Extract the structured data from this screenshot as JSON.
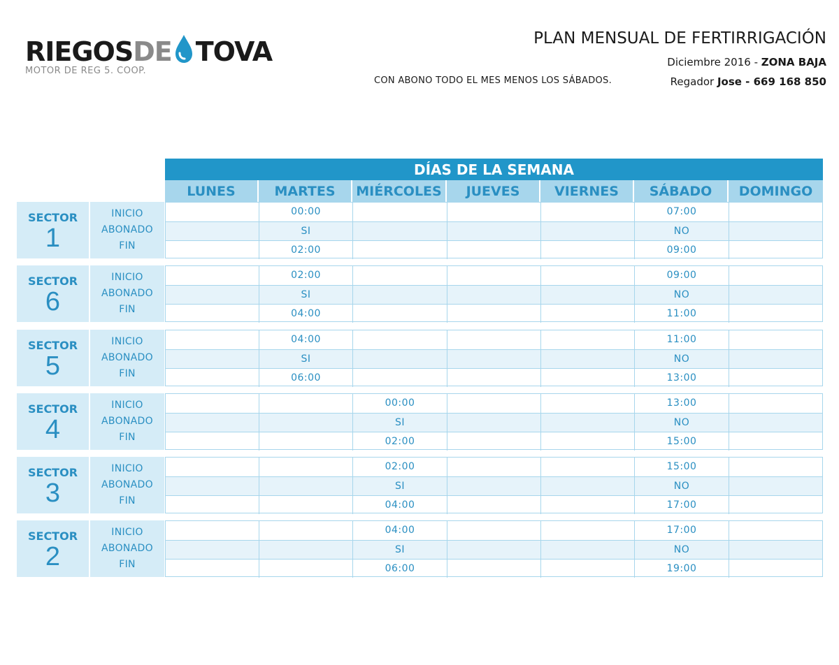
{
  "brand": {
    "word1": "RIEGOS",
    "word2": "DE",
    "word3": "TOVA",
    "subtitle": "MOTOR DE REG 5. COOP.",
    "accent": "#2196c9"
  },
  "header": {
    "title": "PLAN MENSUAL DE FERTIRRIGACIÓN",
    "date_prefix": "Diciembre 2016 - ",
    "zone": "ZONA BAJA",
    "reg_prefix": "Regador ",
    "reg_name": "Jose - 669 168 850",
    "note": "CON ABONO TODO EL MES MENOS LOS SÁBADOS."
  },
  "table": {
    "banner": "DÍAS DE LA SEMANA",
    "days": [
      "LUNES",
      "MARTES",
      "MIÉRCOLES",
      "JUEVES",
      "VIERNES",
      "SÁBADO",
      "DOMINGO"
    ],
    "row_labels": [
      "INICIO",
      "ABONADO",
      "FIN"
    ],
    "sector_word": "SECTOR",
    "sectors": [
      {
        "number": "1",
        "rows": [
          [
            "",
            "00:00",
            "",
            "",
            "",
            "07:00",
            ""
          ],
          [
            "",
            "SI",
            "",
            "",
            "",
            "NO",
            ""
          ],
          [
            "",
            "02:00",
            "",
            "",
            "",
            "09:00",
            ""
          ]
        ]
      },
      {
        "number": "6",
        "rows": [
          [
            "",
            "02:00",
            "",
            "",
            "",
            "09:00",
            ""
          ],
          [
            "",
            "SI",
            "",
            "",
            "",
            "NO",
            ""
          ],
          [
            "",
            "04:00",
            "",
            "",
            "",
            "11:00",
            ""
          ]
        ]
      },
      {
        "number": "5",
        "rows": [
          [
            "",
            "04:00",
            "",
            "",
            "",
            "11:00",
            ""
          ],
          [
            "",
            "SI",
            "",
            "",
            "",
            "NO",
            ""
          ],
          [
            "",
            "06:00",
            "",
            "",
            "",
            "13:00",
            ""
          ]
        ]
      },
      {
        "number": "4",
        "rows": [
          [
            "",
            "",
            "00:00",
            "",
            "",
            "13:00",
            ""
          ],
          [
            "",
            "",
            "SI",
            "",
            "",
            "NO",
            ""
          ],
          [
            "",
            "",
            "02:00",
            "",
            "",
            "15:00",
            ""
          ]
        ]
      },
      {
        "number": "3",
        "rows": [
          [
            "",
            "",
            "02:00",
            "",
            "",
            "15:00",
            ""
          ],
          [
            "",
            "",
            "SI",
            "",
            "",
            "NO",
            ""
          ],
          [
            "",
            "",
            "04:00",
            "",
            "",
            "17:00",
            ""
          ]
        ]
      },
      {
        "number": "2",
        "rows": [
          [
            "",
            "",
            "04:00",
            "",
            "",
            "17:00",
            ""
          ],
          [
            "",
            "",
            "SI",
            "",
            "",
            "NO",
            ""
          ],
          [
            "",
            "",
            "06:00",
            "",
            "",
            "19:00",
            ""
          ]
        ]
      }
    ]
  }
}
